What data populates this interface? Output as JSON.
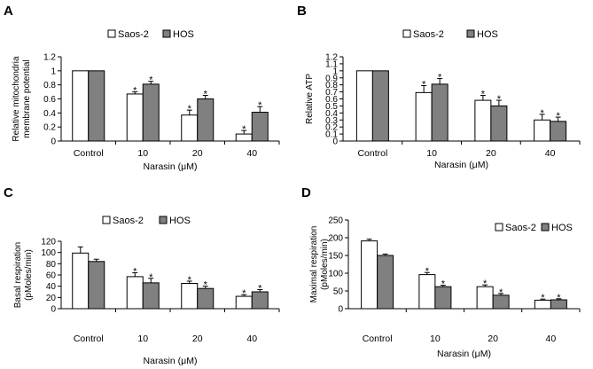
{
  "figure": {
    "background": "#ffffff"
  },
  "colors": {
    "saos2": "#ffffff",
    "hos": "#808080",
    "stroke": "#000000"
  },
  "chart_data": [
    {
      "panel": "A",
      "type": "bar",
      "categories": [
        "Control",
        "10",
        "20",
        "40"
      ],
      "xlabel": "Narasin (μM)",
      "ylabel": [
        "Relative mitochondria",
        "membrane potential"
      ],
      "ylim": [
        0,
        1.2
      ],
      "yticks": [
        0,
        0.2,
        0.4,
        0.6,
        0.8,
        1,
        1.2
      ],
      "ytick_labels": [
        "0",
        "0.2",
        "0.4",
        "0.6",
        "0.8",
        "1",
        "1.2"
      ],
      "legend": [
        "Saos-2",
        "HOS"
      ],
      "legend_position": "top-center",
      "series": [
        {
          "name": "Saos-2",
          "values": [
            1.0,
            0.67,
            0.37,
            0.1
          ],
          "errors": [
            0,
            0.03,
            0.07,
            0.05
          ],
          "stars": [
            false,
            true,
            true,
            true
          ]
        },
        {
          "name": "HOS",
          "values": [
            1.0,
            0.81,
            0.6,
            0.41
          ],
          "errors": [
            0,
            0.04,
            0.05,
            0.08
          ],
          "stars": [
            false,
            true,
            true,
            true
          ]
        }
      ]
    },
    {
      "panel": "B",
      "type": "bar",
      "categories": [
        "Control",
        "10",
        "20",
        "40"
      ],
      "xlabel": "Narasin (μM)",
      "ylabel": [
        "Relative ATP"
      ],
      "ylim": [
        0,
        1.2
      ],
      "yticks": [
        0,
        0.1,
        0.2,
        0.3,
        0.4,
        0.5,
        0.6,
        0.7,
        0.8,
        0.9,
        1,
        1.1,
        1.2
      ],
      "ytick_labels": [
        "0",
        "0.1",
        "0.2",
        "0.3",
        "0.4",
        "0.5",
        "0.6",
        "0.7",
        "0.8",
        "0.9",
        "1",
        "1.1",
        "1.2"
      ],
      "legend": [
        "Saos-2",
        "HOS"
      ],
      "legend_position": "top-center",
      "series": [
        {
          "name": "Saos-2",
          "values": [
            1.0,
            0.69,
            0.58,
            0.3
          ],
          "errors": [
            0,
            0.1,
            0.07,
            0.08
          ],
          "stars": [
            false,
            true,
            true,
            true
          ]
        },
        {
          "name": "HOS",
          "values": [
            1.0,
            0.81,
            0.5,
            0.28
          ],
          "errors": [
            0,
            0.08,
            0.08,
            0.06
          ],
          "stars": [
            false,
            true,
            true,
            true
          ]
        }
      ]
    },
    {
      "panel": "C",
      "type": "bar",
      "categories": [
        "Control",
        "10",
        "20",
        "40"
      ],
      "xlabel": "Narasin (μM)",
      "ylabel": [
        "Basal respiration",
        "(pMoles/min)"
      ],
      "ylim": [
        0,
        120
      ],
      "yticks": [
        0,
        20,
        40,
        60,
        80,
        100,
        120
      ],
      "ytick_labels": [
        "0",
        "20",
        "40",
        "60",
        "80",
        "100",
        "120"
      ],
      "legend": [
        "Saos-2",
        "HOS"
      ],
      "legend_position": "top-center",
      "series": [
        {
          "name": "Saos-2",
          "values": [
            99,
            57,
            45,
            22
          ],
          "errors": [
            11,
            7,
            4,
            3
          ],
          "stars": [
            false,
            true,
            true,
            true
          ]
        },
        {
          "name": "HOS",
          "values": [
            84,
            46,
            36,
            30
          ],
          "errors": [
            4,
            8,
            4,
            4
          ],
          "stars": [
            false,
            true,
            true,
            true
          ]
        }
      ]
    },
    {
      "panel": "D",
      "type": "bar",
      "categories": [
        "Control",
        "10",
        "20",
        "40"
      ],
      "xlabel": "Narasin (μM)",
      "ylabel": [
        "Maximal respiration",
        "(pMoles/min)"
      ],
      "ylim": [
        0,
        250
      ],
      "yticks": [
        0,
        50,
        100,
        150,
        200,
        250
      ],
      "ytick_labels": [
        "0",
        "50",
        "100",
        "150",
        "200",
        "250"
      ],
      "legend": [
        "Saos-2",
        "HOS"
      ],
      "legend_position": "top-right",
      "series": [
        {
          "name": "Saos-2",
          "values": [
            191,
            96,
            62,
            24
          ],
          "errors": [
            5,
            6,
            5,
            3
          ],
          "stars": [
            false,
            true,
            true,
            true
          ]
        },
        {
          "name": "HOS",
          "values": [
            150,
            62,
            38,
            25
          ],
          "errors": [
            4,
            4,
            5,
            3
          ],
          "stars": [
            false,
            true,
            true,
            true
          ]
        }
      ]
    }
  ],
  "star_symbol": "*"
}
